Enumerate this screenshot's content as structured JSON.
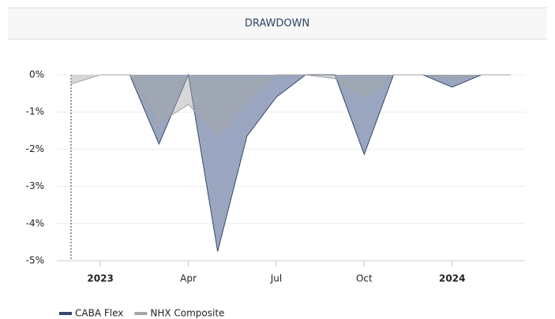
{
  "chart_data": {
    "type": "area",
    "title": "DRAWDOWN",
    "x": [
      "2022-12",
      "2023-01",
      "2023-02",
      "2023-03",
      "2023-04",
      "2023-05",
      "2023-06",
      "2023-07",
      "2023-08",
      "2023-09",
      "2023-10",
      "2023-11",
      "2023-12",
      "2024-01",
      "2024-02",
      "2024-03"
    ],
    "series": [
      {
        "name": "CABA Flex",
        "color": "#34486b",
        "fill": "#9aa6bf",
        "values": [
          null,
          0,
          0,
          -1.86,
          0,
          -4.75,
          -1.65,
          -0.6,
          0,
          0,
          -2.14,
          0,
          0,
          -0.33,
          0,
          0
        ]
      },
      {
        "name": "NHX Composite",
        "color": "#a0a0a0",
        "fill": "#a6a6a6",
        "values": [
          -0.25,
          0,
          0,
          -1.3,
          -0.8,
          -1.6,
          -0.75,
          0,
          0,
          -0.1,
          -0.6,
          0,
          0,
          -0.1,
          0,
          0
        ]
      }
    ],
    "xticks": [
      {
        "value": "2023-01",
        "label": "2023"
      },
      {
        "value": "2023-04",
        "label": "Apr"
      },
      {
        "value": "2023-07",
        "label": "Jul"
      },
      {
        "value": "2023-10",
        "label": "Oct"
      },
      {
        "value": "2024-01",
        "label": "2024"
      }
    ],
    "ylim": [
      -5,
      0
    ],
    "yticks": [
      {
        "value": 0,
        "label": "0%"
      },
      {
        "value": -1,
        "label": "-1%"
      },
      {
        "value": -2,
        "label": "-2%"
      },
      {
        "value": -3,
        "label": "-3%"
      },
      {
        "value": -4,
        "label": "-4%"
      },
      {
        "value": -5,
        "label": "-5%"
      }
    ],
    "grid": true
  }
}
